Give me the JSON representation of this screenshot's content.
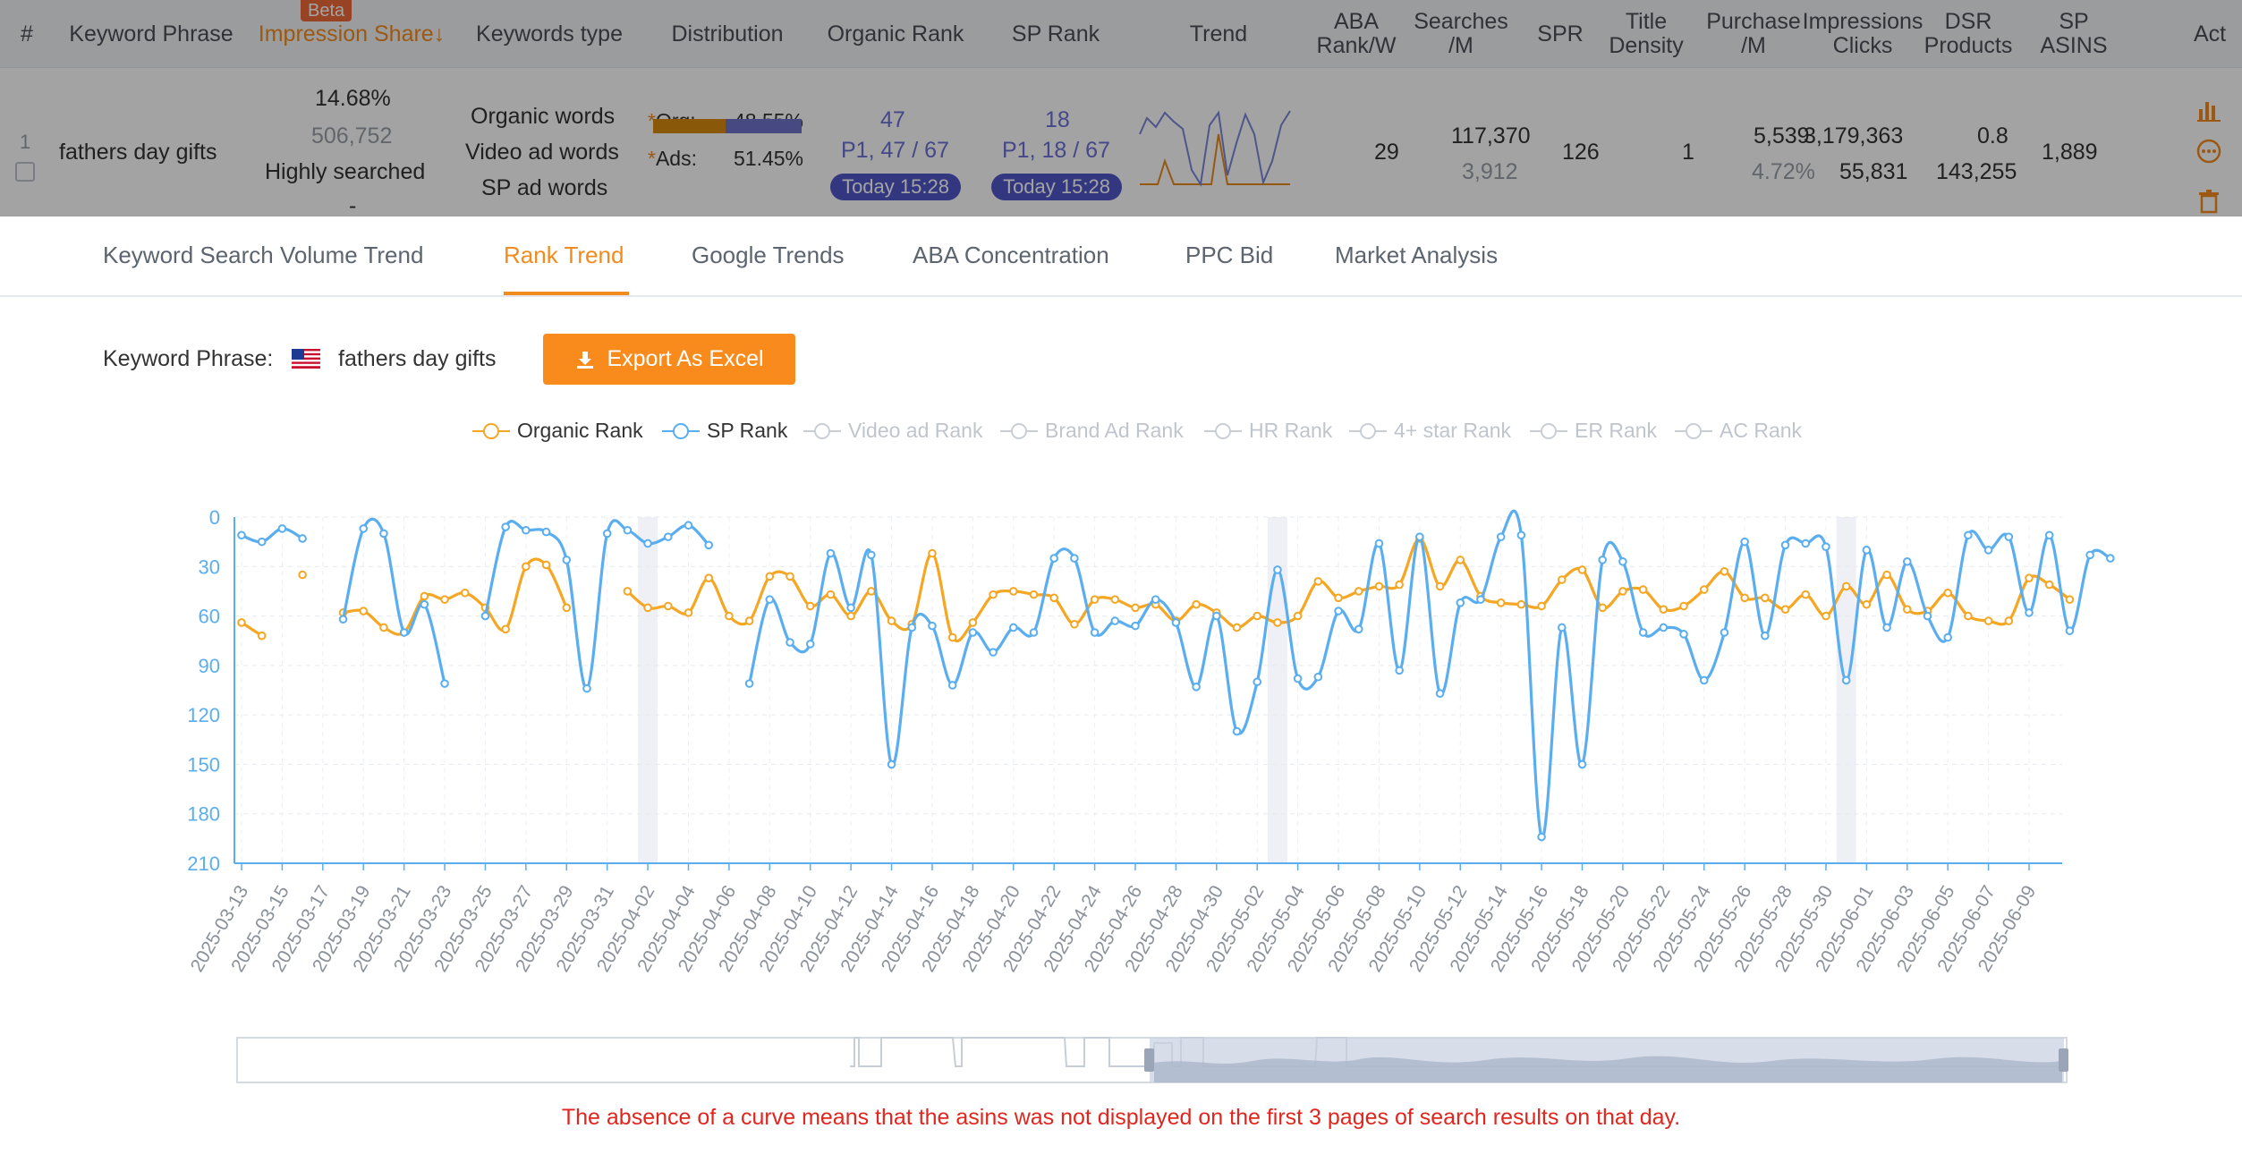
{
  "table": {
    "headers": [
      {
        "key": "index",
        "label": "#"
      },
      {
        "key": "keyword",
        "label": "Keyword Phrase"
      },
      {
        "key": "impression_share",
        "label": "Impression Share↓"
      },
      {
        "key": "keywords_type",
        "label": "Keywords type"
      },
      {
        "key": "distribution",
        "label": "Distribution"
      },
      {
        "key": "organic_rank",
        "label": "Organic Rank"
      },
      {
        "key": "sp_rank",
        "label": "SP Rank"
      },
      {
        "key": "trend",
        "label": "Trend"
      },
      {
        "key": "aba",
        "label": "ABA Rank/W"
      },
      {
        "key": "searches",
        "label": "Searches /M"
      },
      {
        "key": "spr",
        "label": "SPR"
      },
      {
        "key": "title_density",
        "label": "Title Density"
      },
      {
        "key": "purchase",
        "label": "Purchase /M"
      },
      {
        "key": "impr_clicks",
        "label": "Impressions Clicks"
      },
      {
        "key": "dsr",
        "label": "DSR Products"
      },
      {
        "key": "sp_asins",
        "label": "SP ASINS"
      },
      {
        "key": "act",
        "label": "Act"
      }
    ],
    "beta_badge": "Beta",
    "row": {
      "index": "1",
      "keyword": "fathers day gifts",
      "impression_share": "14.68%",
      "impressions": "506,752",
      "search_tag": "Highly searched",
      "search_tag_extra": "-",
      "keyword_types": [
        "Organic words",
        "Video ad words",
        "SP ad words"
      ],
      "distribution": {
        "org_label": "Org:",
        "org_value": "48.55%",
        "ads_label": "Ads:",
        "ads_value": "51.45%",
        "org_fraction": 0.4855
      },
      "organic_rank": {
        "rank": "47",
        "position": "P1, 47 / 67",
        "time": "Today 15:28"
      },
      "sp_rank": {
        "rank": "18",
        "position": "P1, 18 / 67",
        "time": "Today 15:28"
      },
      "aba_rank": "29",
      "searches": "117,370",
      "searches_sub": "3,912",
      "spr": "126",
      "title_density": "1",
      "purchase": "5,539",
      "purchase_rate": "4.72%",
      "impressions_total": "3,179,363",
      "clicks": "55,831",
      "dsr": "0.8",
      "products": "143,255",
      "sp_asins": "1,889"
    }
  },
  "tabs": {
    "items": [
      {
        "label": "Keyword Search Volume Trend",
        "active": false
      },
      {
        "label": "Rank Trend",
        "active": true
      },
      {
        "label": "Google Trends",
        "active": false
      },
      {
        "label": "ABA Concentration",
        "active": false
      },
      {
        "label": "PPC Bid",
        "active": false
      },
      {
        "label": "Market Analysis",
        "active": false
      }
    ]
  },
  "keyword_line": {
    "label": "Keyword Phrase:",
    "value": "fathers day gifts",
    "export_label": "Export As Excel"
  },
  "legend": [
    {
      "name": "Organic Rank",
      "color": "#f5a623",
      "active": true
    },
    {
      "name": "SP Rank",
      "color": "#5aaef0",
      "active": true
    },
    {
      "name": "Video ad Rank",
      "color": "#c9ced6",
      "active": false
    },
    {
      "name": "Brand Ad Rank",
      "color": "#c9ced6",
      "active": false
    },
    {
      "name": "HR Rank",
      "color": "#c9ced6",
      "active": false
    },
    {
      "name": "4+ star Rank",
      "color": "#c9ced6",
      "active": false
    },
    {
      "name": "ER Rank",
      "color": "#c9ced6",
      "active": false
    },
    {
      "name": "AC Rank",
      "color": "#c9ced6",
      "active": false
    }
  ],
  "chart_data": {
    "type": "line",
    "y_axis": {
      "ticks": [
        0,
        30,
        60,
        90,
        120,
        150,
        180,
        210
      ],
      "inverted": true,
      "range": [
        0,
        210
      ]
    },
    "x_axis": {
      "start": "2025-03-13",
      "end": "2025-06-10",
      "tick_labels": [
        "2025-03-13",
        "2025-03-15",
        "2025-03-17",
        "2025-03-19",
        "2025-03-21",
        "2025-03-23",
        "2025-03-25",
        "2025-03-27",
        "2025-03-29",
        "2025-03-31",
        "2025-04-02",
        "2025-04-04",
        "2025-04-06",
        "2025-04-08",
        "2025-04-10",
        "2025-04-12",
        "2025-04-14",
        "2025-04-16",
        "2025-04-18",
        "2025-04-20",
        "2025-04-22",
        "2025-04-24",
        "2025-04-26",
        "2025-04-28",
        "2025-04-30",
        "2025-05-02",
        "2025-05-04",
        "2025-05-06",
        "2025-05-08",
        "2025-05-10",
        "2025-05-12",
        "2025-05-14",
        "2025-05-16",
        "2025-05-18",
        "2025-05-20",
        "2025-05-22",
        "2025-05-24",
        "2025-05-26",
        "2025-05-28",
        "2025-05-30",
        "2025-06-01",
        "2025-06-03",
        "2025-06-05",
        "2025-06-07",
        "2025-06-09"
      ]
    },
    "highlight_dates": [
      "2025-04-02",
      "2025-05-03",
      "2025-05-31"
    ],
    "series": [
      {
        "name": "Organic Rank",
        "color": "#f5a623",
        "points": [
          [
            "2025-03-13",
            64
          ],
          [
            "2025-03-14",
            72
          ],
          [
            "2025-03-16",
            35
          ],
          [
            "2025-03-18",
            58
          ],
          [
            "2025-03-19",
            57
          ],
          [
            "2025-03-20",
            67
          ],
          [
            "2025-03-21",
            70
          ],
          [
            "2025-03-22",
            48
          ],
          [
            "2025-03-23",
            50
          ],
          [
            "2025-03-24",
            46
          ],
          [
            "2025-03-25",
            55
          ],
          [
            "2025-03-26",
            68
          ],
          [
            "2025-03-27",
            30
          ],
          [
            "2025-03-28",
            29
          ],
          [
            "2025-03-29",
            55
          ],
          [
            "2025-04-01",
            45
          ],
          [
            "2025-04-02",
            55
          ],
          [
            "2025-04-03",
            54
          ],
          [
            "2025-04-04",
            58
          ],
          [
            "2025-04-05",
            37
          ],
          [
            "2025-04-06",
            60
          ],
          [
            "2025-04-07",
            63
          ],
          [
            "2025-04-08",
            36
          ],
          [
            "2025-04-09",
            36
          ],
          [
            "2025-04-10",
            54
          ],
          [
            "2025-04-11",
            47
          ],
          [
            "2025-04-12",
            60
          ],
          [
            "2025-04-13",
            45
          ],
          [
            "2025-04-14",
            63
          ],
          [
            "2025-04-15",
            65
          ],
          [
            "2025-04-16",
            22
          ],
          [
            "2025-04-17",
            73
          ],
          [
            "2025-04-18",
            64
          ],
          [
            "2025-04-19",
            47
          ],
          [
            "2025-04-20",
            45
          ],
          [
            "2025-04-21",
            47
          ],
          [
            "2025-04-22",
            49
          ],
          [
            "2025-04-23",
            65
          ],
          [
            "2025-04-24",
            50
          ],
          [
            "2025-04-25",
            50
          ],
          [
            "2025-04-26",
            55
          ],
          [
            "2025-04-27",
            53
          ],
          [
            "2025-04-28",
            63
          ],
          [
            "2025-04-29",
            53
          ],
          [
            "2025-04-30",
            58
          ],
          [
            "2025-05-01",
            67
          ],
          [
            "2025-05-02",
            60
          ],
          [
            "2025-05-03",
            64
          ],
          [
            "2025-05-04",
            60
          ],
          [
            "2025-05-05",
            39
          ],
          [
            "2025-05-06",
            49
          ],
          [
            "2025-05-07",
            45
          ],
          [
            "2025-05-08",
            42
          ],
          [
            "2025-05-09",
            41
          ],
          [
            "2025-05-10",
            13
          ],
          [
            "2025-05-11",
            42
          ],
          [
            "2025-05-12",
            26
          ],
          [
            "2025-05-13",
            48
          ],
          [
            "2025-05-14",
            52
          ],
          [
            "2025-05-15",
            53
          ],
          [
            "2025-05-16",
            54
          ],
          [
            "2025-05-17",
            38
          ],
          [
            "2025-05-18",
            32
          ],
          [
            "2025-05-19",
            55
          ],
          [
            "2025-05-20",
            45
          ],
          [
            "2025-05-21",
            44
          ],
          [
            "2025-05-22",
            56
          ],
          [
            "2025-05-23",
            54
          ],
          [
            "2025-05-24",
            44
          ],
          [
            "2025-05-25",
            33
          ],
          [
            "2025-05-26",
            49
          ],
          [
            "2025-05-27",
            49
          ],
          [
            "2025-05-28",
            56
          ],
          [
            "2025-05-29",
            47
          ],
          [
            "2025-05-30",
            60
          ],
          [
            "2025-05-31",
            42
          ],
          [
            "2025-06-01",
            53
          ],
          [
            "2025-06-02",
            35
          ],
          [
            "2025-06-03",
            56
          ],
          [
            "2025-06-04",
            57
          ],
          [
            "2025-06-05",
            46
          ],
          [
            "2025-06-06",
            60
          ],
          [
            "2025-06-07",
            63
          ],
          [
            "2025-06-08",
            63
          ],
          [
            "2025-06-09",
            37
          ],
          [
            "2025-06-10",
            41
          ],
          [
            "2025-06-11",
            50
          ]
        ]
      },
      {
        "name": "SP Rank",
        "color": "#5aaef0",
        "points": [
          [
            "2025-03-13",
            11
          ],
          [
            "2025-03-14",
            15
          ],
          [
            "2025-03-15",
            7
          ],
          [
            "2025-03-16",
            13
          ],
          [
            "2025-03-18",
            62
          ],
          [
            "2025-03-19",
            7
          ],
          [
            "2025-03-20",
            10
          ],
          [
            "2025-03-21",
            70
          ],
          [
            "2025-03-22",
            53
          ],
          [
            "2025-03-23",
            101
          ],
          [
            "2025-03-25",
            60
          ],
          [
            "2025-03-26",
            6
          ],
          [
            "2025-03-27",
            8
          ],
          [
            "2025-03-28",
            9
          ],
          [
            "2025-03-29",
            26
          ],
          [
            "2025-03-30",
            104
          ],
          [
            "2025-03-31",
            10
          ],
          [
            "2025-04-01",
            8
          ],
          [
            "2025-04-02",
            16
          ],
          [
            "2025-04-03",
            12
          ],
          [
            "2025-04-04",
            5
          ],
          [
            "2025-04-05",
            17
          ],
          [
            "2025-04-07",
            101
          ],
          [
            "2025-04-08",
            50
          ],
          [
            "2025-04-09",
            76
          ],
          [
            "2025-04-10",
            77
          ],
          [
            "2025-04-11",
            22
          ],
          [
            "2025-04-12",
            55
          ],
          [
            "2025-04-13",
            23
          ],
          [
            "2025-04-14",
            150
          ],
          [
            "2025-04-15",
            67
          ],
          [
            "2025-04-16",
            66
          ],
          [
            "2025-04-17",
            102
          ],
          [
            "2025-04-18",
            70
          ],
          [
            "2025-04-19",
            82
          ],
          [
            "2025-04-20",
            67
          ],
          [
            "2025-04-21",
            70
          ],
          [
            "2025-04-22",
            25
          ],
          [
            "2025-04-23",
            25
          ],
          [
            "2025-04-24",
            70
          ],
          [
            "2025-04-25",
            63
          ],
          [
            "2025-04-26",
            66
          ],
          [
            "2025-04-27",
            50
          ],
          [
            "2025-04-28",
            64
          ],
          [
            "2025-04-29",
            103
          ],
          [
            "2025-04-30",
            60
          ],
          [
            "2025-05-01",
            130
          ],
          [
            "2025-05-02",
            100
          ],
          [
            "2025-05-03",
            32
          ],
          [
            "2025-05-04",
            98
          ],
          [
            "2025-05-05",
            97
          ],
          [
            "2025-05-06",
            57
          ],
          [
            "2025-05-07",
            68
          ],
          [
            "2025-05-08",
            16
          ],
          [
            "2025-05-09",
            93
          ],
          [
            "2025-05-10",
            12
          ],
          [
            "2025-05-11",
            107
          ],
          [
            "2025-05-12",
            52
          ],
          [
            "2025-05-13",
            50
          ],
          [
            "2025-05-14",
            12
          ],
          [
            "2025-05-15",
            11
          ],
          [
            "2025-05-16",
            194
          ],
          [
            "2025-05-17",
            67
          ],
          [
            "2025-05-18",
            150
          ],
          [
            "2025-05-19",
            26
          ],
          [
            "2025-05-20",
            27
          ],
          [
            "2025-05-21",
            70
          ],
          [
            "2025-05-22",
            67
          ],
          [
            "2025-05-23",
            71
          ],
          [
            "2025-05-24",
            99
          ],
          [
            "2025-05-25",
            70
          ],
          [
            "2025-05-26",
            15
          ],
          [
            "2025-05-27",
            72
          ],
          [
            "2025-05-28",
            17
          ],
          [
            "2025-05-29",
            16
          ],
          [
            "2025-05-30",
            18
          ],
          [
            "2025-05-31",
            99
          ],
          [
            "2025-06-01",
            20
          ],
          [
            "2025-06-02",
            67
          ],
          [
            "2025-06-03",
            27
          ],
          [
            "2025-06-04",
            60
          ],
          [
            "2025-06-05",
            73
          ],
          [
            "2025-06-06",
            11
          ],
          [
            "2025-06-07",
            20
          ],
          [
            "2025-06-08",
            12
          ],
          [
            "2025-06-09",
            58
          ],
          [
            "2025-06-10",
            11
          ],
          [
            "2025-06-11",
            69
          ],
          [
            "2025-06-12",
            23
          ],
          [
            "2025-06-13",
            25
          ]
        ]
      }
    ]
  },
  "notice": "The absence of a curve means that the asins was not displayed on the first 3 pages of search results on that day."
}
